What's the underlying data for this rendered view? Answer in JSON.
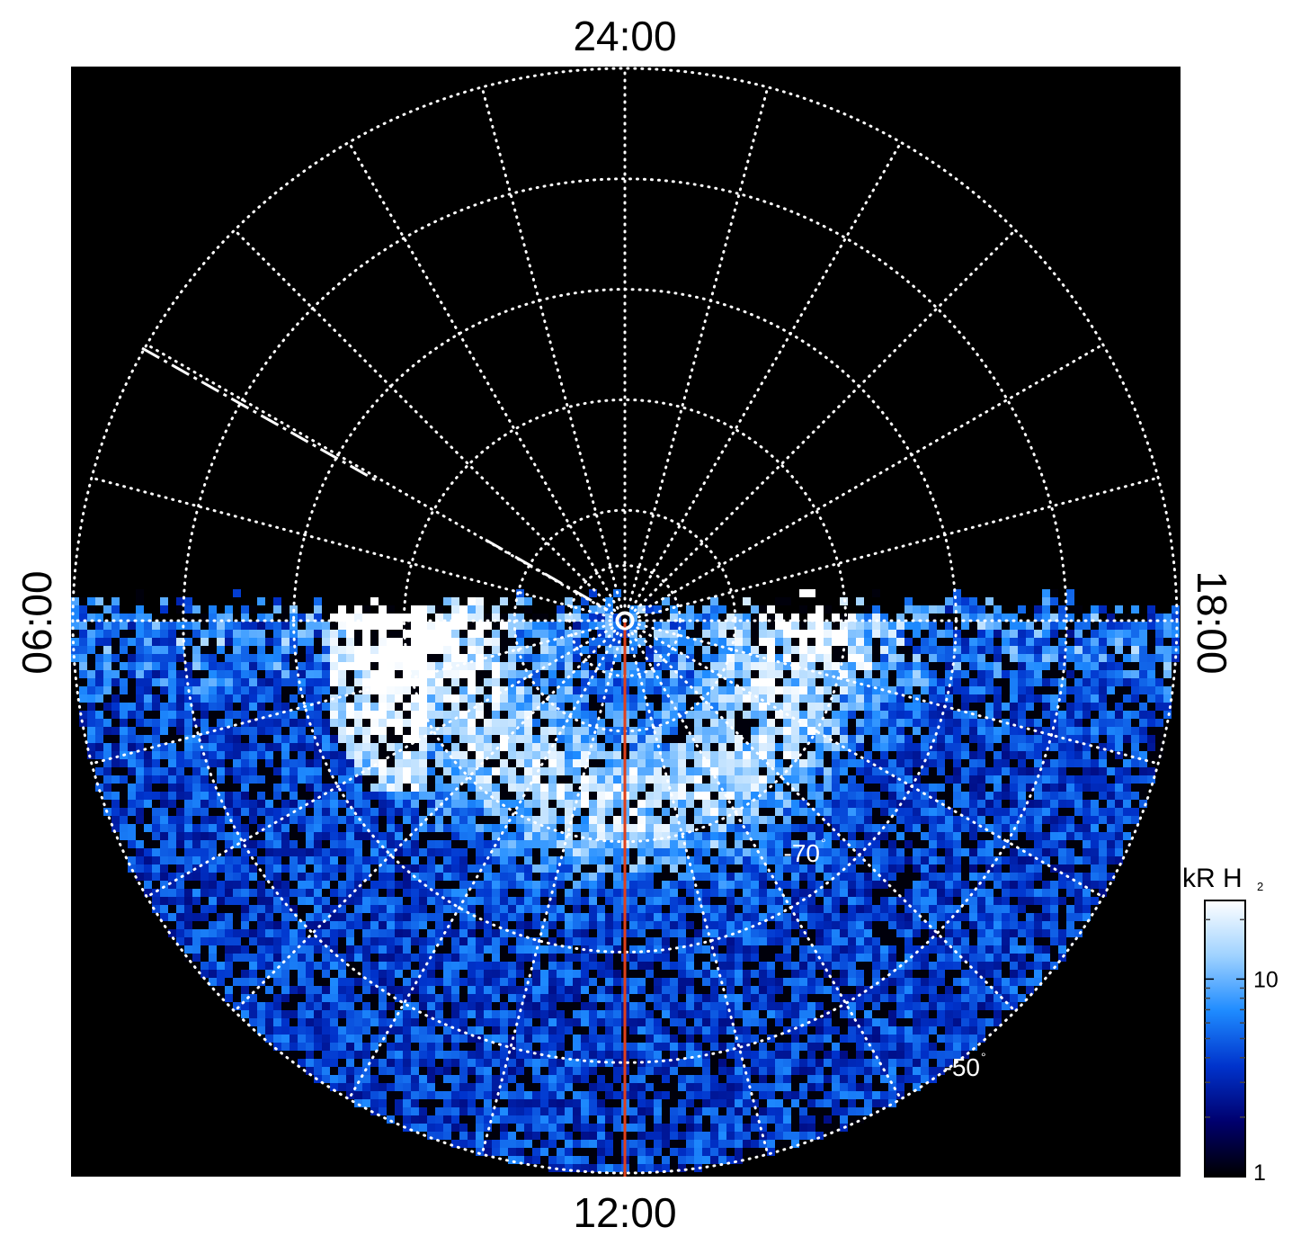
{
  "chart_data": {
    "type": "heatmap",
    "projection": "polar",
    "local_time_labels": {
      "top": "24:00",
      "bottom": "12:00",
      "left": "06:00",
      "right": "18:00"
    },
    "latitude_labels": [
      {
        "value": -70,
        "text": "-70",
        "unit": "°"
      },
      {
        "value": -50,
        "text": "-50",
        "unit": "°"
      }
    ],
    "latitude_rings_deg": [
      -85,
      -80,
      -70,
      -60,
      -50,
      -40
    ],
    "meridian_spacing_hours": 1,
    "grid": true,
    "grid_style": "dotted white",
    "colorbar": {
      "title": "kR H",
      "title_subscript": "2",
      "scale": "log",
      "range": [
        1,
        25
      ],
      "ticks": [
        {
          "value": 1,
          "label": "1"
        },
        {
          "value": 10,
          "label": "10"
        }
      ],
      "colormap": [
        "#000000",
        "#00006e",
        "#0033cc",
        "#1e8bff",
        "#9fd2ff",
        "#ffffff"
      ]
    },
    "observed_sector_local_time": [
      6,
      18
    ],
    "highlight_meridian_local_time": 12,
    "highlight_meridian_color": "#e0401a",
    "dashed_track_color": "#ffffff",
    "background_color": "#000000"
  }
}
